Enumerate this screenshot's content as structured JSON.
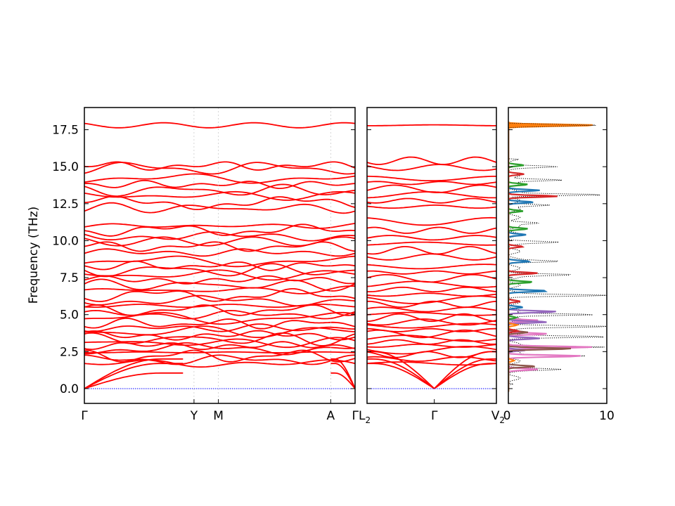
{
  "chart_data": [
    {
      "type": "line",
      "panel": "band-structure-left",
      "ylabel": "Frequency (THz)",
      "ylim": [
        -1.0,
        19.0
      ],
      "yticks": [
        "0.0",
        "2.5",
        "5.0",
        "7.5",
        "10.0",
        "12.5",
        "15.0",
        "17.5"
      ],
      "xticks": [
        "Γ",
        "Y",
        "M",
        "A",
        "Γ"
      ],
      "x_positions": [
        0.0,
        0.405,
        0.495,
        0.91,
        1.0
      ],
      "series_color": "#ff0000",
      "zero_line_color": "#0000ff",
      "acoustic_end_values": [
        1.05,
        1.7,
        2.0
      ],
      "top_band_values": [
        17.8,
        17.8
      ],
      "band_levels_at_gamma": [
        1.7,
        1.95,
        2.2,
        2.45,
        2.7,
        2.9,
        3.1,
        3.35,
        3.6,
        3.85,
        4.1,
        4.4,
        4.75,
        5.0,
        5.3,
        5.6,
        5.95,
        6.3,
        6.65,
        7.0,
        7.35,
        7.7,
        8.0,
        8.3,
        8.6,
        9.2,
        9.6,
        9.95,
        10.3,
        10.7,
        11.0,
        12.2,
        12.55,
        13.05,
        13.4,
        13.8,
        14.2,
        14.9,
        15.05,
        17.8
      ]
    },
    {
      "type": "line",
      "panel": "band-structure-middle",
      "ylim": [
        -1.0,
        19.0
      ],
      "xticks": [
        "L2",
        "Γ",
        "V2"
      ],
      "x_positions": [
        0.0,
        0.52,
        1.0
      ],
      "series_color": "#ff0000",
      "zero_line_color": "#0000ff",
      "band_levels": [
        1.7,
        2.0,
        2.3,
        2.6,
        2.9,
        3.15,
        3.4,
        3.7,
        3.95,
        4.25,
        4.5,
        4.8,
        5.05,
        5.35,
        5.7,
        6.0,
        6.35,
        6.7,
        7.05,
        7.45,
        7.85,
        8.25,
        8.9,
        9.35,
        9.8,
        10.2,
        10.7,
        11.3,
        12.3,
        12.7,
        13.1,
        13.5,
        13.9,
        14.2,
        14.95,
        15.4,
        17.8
      ]
    },
    {
      "type": "area",
      "panel": "partial-dos",
      "xlim": [
        0,
        10
      ],
      "xticks": [
        "0",
        "10"
      ],
      "ylim": [
        -1.0,
        19.0
      ],
      "series": [
        {
          "color": "#000000",
          "style": "dotted",
          "peaks": [
            [
              1.3,
              4.2
            ],
            [
              2.2,
              7.8
            ],
            [
              2.8,
              9.5
            ],
            [
              3.5,
              9.0
            ],
            [
              4.2,
              9.3
            ],
            [
              5.0,
              8.8
            ],
            [
              6.3,
              9.5
            ],
            [
              7.7,
              6.0
            ],
            [
              8.6,
              4.5
            ],
            [
              9.9,
              4.0
            ],
            [
              11.2,
              3.0
            ],
            [
              12.4,
              4.2
            ],
            [
              13.1,
              9.3
            ],
            [
              14.1,
              5.5
            ],
            [
              15.0,
              3.8
            ],
            [
              17.8,
              9.2
            ]
          ]
        },
        {
          "color": "#e377c2",
          "peaks": [
            [
              1.3,
              3.0
            ],
            [
              2.2,
              7.5
            ],
            [
              2.8,
              8.5
            ],
            [
              3.7,
              4.0
            ],
            [
              4.6,
              3.2
            ]
          ]
        },
        {
          "color": "#9467bd",
          "peaks": [
            [
              2.6,
              1.8
            ],
            [
              3.4,
              3.2
            ],
            [
              4.5,
              4.0
            ],
            [
              5.2,
              5.0
            ]
          ]
        },
        {
          "color": "#8c564b",
          "peaks": [
            [
              1.5,
              2.8
            ],
            [
              2.7,
              6.5
            ],
            [
              3.8,
              2.0
            ]
          ]
        },
        {
          "color": "#1f77b4",
          "peaks": [
            [
              5.5,
              1.5
            ],
            [
              6.6,
              4.0
            ],
            [
              8.6,
              2.2
            ],
            [
              10.4,
              1.8
            ],
            [
              12.6,
              2.6
            ],
            [
              13.4,
              3.2
            ]
          ]
        },
        {
          "color": "#2ca02c",
          "peaks": [
            [
              4.8,
              0.8
            ],
            [
              7.2,
              2.5
            ],
            [
              10.8,
              2.0
            ],
            [
              12.0,
              1.5
            ],
            [
              13.8,
              2.0
            ],
            [
              15.1,
              1.6
            ]
          ]
        },
        {
          "color": "#d62728",
          "peaks": [
            [
              3.9,
              1.0
            ],
            [
              5.9,
              1.2
            ],
            [
              7.8,
              3.0
            ],
            [
              9.6,
              1.5
            ],
            [
              13.0,
              5.0
            ],
            [
              14.5,
              1.6
            ]
          ]
        },
        {
          "color": "#ff7f0e",
          "peaks": [
            [
              1.9,
              0.6
            ],
            [
              4.3,
              0.9
            ],
            [
              17.8,
              9.0
            ]
          ]
        }
      ]
    }
  ]
}
